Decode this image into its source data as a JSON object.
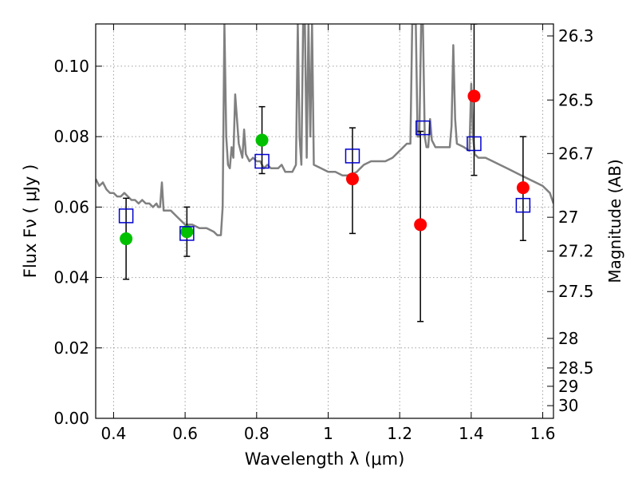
{
  "chart_data": {
    "type": "scatter",
    "title": "",
    "xlabel": "Wavelength  λ (μm)",
    "ylabel": "Flux  Fν  ( μJy )",
    "ylabel_right": "Magnitude (AB)",
    "xlim": [
      0.35,
      1.63
    ],
    "ylim": [
      0.0,
      0.112
    ],
    "grid": true,
    "x_ticks": [
      0.4,
      0.6,
      0.8,
      1.0,
      1.2,
      1.4,
      1.6
    ],
    "x_tick_labels": [
      "0.4",
      "0.6",
      "0.8",
      "1",
      "1.2",
      "1.4",
      "1.6"
    ],
    "y_ticks": [
      0.0,
      0.02,
      0.04,
      0.06,
      0.08,
      0.1
    ],
    "y_tick_labels": [
      "0.00",
      "0.02",
      "0.04",
      "0.06",
      "0.08",
      "0.10"
    ],
    "mag_ticks": [
      {
        "label": "26.3",
        "flux": 0.1086
      },
      {
        "label": "26.5",
        "flux": 0.0904
      },
      {
        "label": "26.7",
        "flux": 0.0752
      },
      {
        "label": "27",
        "flux": 0.0571
      },
      {
        "label": "27.2",
        "flux": 0.0475
      },
      {
        "label": "27.5",
        "flux": 0.036
      },
      {
        "label": "28",
        "flux": 0.0227
      },
      {
        "label": "28.5",
        "flux": 0.0143
      },
      {
        "label": "29",
        "flux": 0.0091
      },
      {
        "label": "30",
        "flux": 0.0036
      }
    ],
    "colors": {
      "spectrum": "#808080",
      "detection_green": "#00c000",
      "detection_red": "#ff0000",
      "model": "#0000cc",
      "errorbar": "#000000",
      "grid": "#a0a0a0"
    },
    "spectrum": {
      "name": "",
      "x": [
        0.35,
        0.36,
        0.37,
        0.38,
        0.39,
        0.4,
        0.41,
        0.42,
        0.43,
        0.44,
        0.45,
        0.46,
        0.47,
        0.48,
        0.49,
        0.5,
        0.51,
        0.52,
        0.525,
        0.53,
        0.535,
        0.54,
        0.56,
        0.58,
        0.6,
        0.62,
        0.64,
        0.66,
        0.68,
        0.69,
        0.7,
        0.705,
        0.71,
        0.715,
        0.72,
        0.725,
        0.73,
        0.735,
        0.74,
        0.75,
        0.76,
        0.765,
        0.77,
        0.78,
        0.79,
        0.8,
        0.81,
        0.82,
        0.83,
        0.84,
        0.85,
        0.86,
        0.87,
        0.88,
        0.89,
        0.9,
        0.91,
        0.915,
        0.92,
        0.925,
        0.93,
        0.935,
        0.94,
        0.945,
        0.95,
        0.955,
        0.96,
        0.98,
        1.0,
        1.02,
        1.04,
        1.06,
        1.08,
        1.09,
        1.1,
        1.12,
        1.14,
        1.16,
        1.18,
        1.2,
        1.22,
        1.23,
        1.235,
        1.24,
        1.245,
        1.25,
        1.255,
        1.26,
        1.265,
        1.27,
        1.275,
        1.28,
        1.285,
        1.29,
        1.3,
        1.32,
        1.34,
        1.345,
        1.35,
        1.355,
        1.36,
        1.38,
        1.395,
        1.4,
        1.405,
        1.41,
        1.42,
        1.44,
        1.46,
        1.48,
        1.5,
        1.52,
        1.54,
        1.56,
        1.58,
        1.6,
        1.62,
        1.63
      ],
      "y": [
        0.068,
        0.066,
        0.067,
        0.065,
        0.064,
        0.064,
        0.063,
        0.063,
        0.064,
        0.063,
        0.062,
        0.062,
        0.061,
        0.062,
        0.061,
        0.061,
        0.06,
        0.061,
        0.06,
        0.06,
        0.067,
        0.059,
        0.059,
        0.057,
        0.055,
        0.055,
        0.054,
        0.054,
        0.053,
        0.052,
        0.052,
        0.06,
        0.112,
        0.08,
        0.072,
        0.071,
        0.077,
        0.074,
        0.092,
        0.078,
        0.074,
        0.082,
        0.075,
        0.073,
        0.074,
        0.073,
        0.073,
        0.071,
        0.072,
        0.071,
        0.071,
        0.071,
        0.072,
        0.07,
        0.07,
        0.07,
        0.072,
        0.112,
        0.08,
        0.072,
        0.112,
        0.112,
        0.074,
        0.112,
        0.08,
        0.112,
        0.072,
        0.071,
        0.07,
        0.07,
        0.069,
        0.069,
        0.07,
        0.071,
        0.072,
        0.073,
        0.073,
        0.073,
        0.074,
        0.076,
        0.078,
        0.078,
        0.112,
        0.112,
        0.112,
        0.08,
        0.08,
        0.112,
        0.112,
        0.08,
        0.077,
        0.077,
        0.085,
        0.079,
        0.077,
        0.077,
        0.077,
        0.083,
        0.106,
        0.085,
        0.078,
        0.077,
        0.076,
        0.095,
        0.08,
        0.075,
        0.074,
        0.074,
        0.073,
        0.072,
        0.071,
        0.07,
        0.069,
        0.068,
        0.067,
        0.066,
        0.064,
        0.061
      ]
    },
    "detections": [
      {
        "x": 0.435,
        "y": 0.051,
        "err_low": 0.0395,
        "err_high": 0.0625,
        "color": "green"
      },
      {
        "x": 0.605,
        "y": 0.053,
        "err_low": 0.046,
        "err_high": 0.06,
        "color": "green"
      },
      {
        "x": 0.815,
        "y": 0.079,
        "err_low": 0.0695,
        "err_high": 0.0885,
        "color": "green"
      },
      {
        "x": 1.068,
        "y": 0.068,
        "err_low": 0.0525,
        "err_high": 0.0825,
        "color": "red"
      },
      {
        "x": 1.258,
        "y": 0.055,
        "err_low": 0.0275,
        "err_high": 0.0815,
        "color": "red"
      },
      {
        "x": 1.408,
        "y": 0.0915,
        "err_low": 0.069,
        "err_high": 0.112,
        "color": "red"
      },
      {
        "x": 1.545,
        "y": 0.0655,
        "err_low": 0.0505,
        "err_high": 0.08,
        "color": "red"
      }
    ],
    "model_photometry": [
      {
        "x": 0.435,
        "y": 0.0575
      },
      {
        "x": 0.605,
        "y": 0.0525
      },
      {
        "x": 0.815,
        "y": 0.073
      },
      {
        "x": 1.068,
        "y": 0.0745
      },
      {
        "x": 1.265,
        "y": 0.0825
      },
      {
        "x": 1.408,
        "y": 0.078
      },
      {
        "x": 1.545,
        "y": 0.0605
      }
    ]
  }
}
